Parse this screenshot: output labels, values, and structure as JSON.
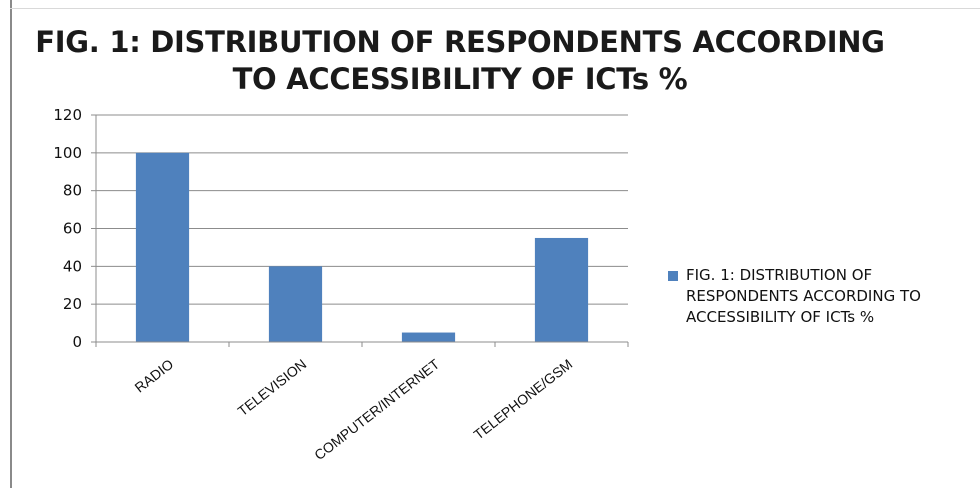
{
  "chart_data": {
    "type": "bar",
    "title": "FIG. 1: DISTRIBUTION OF RESPONDENTS ACCORDING TO ACCESSIBILITY OF ICTs %",
    "categories": [
      "RADIO",
      "TELEVISION",
      "COMPUTER/INTERNET",
      "TELEPHONE/GSM"
    ],
    "series": [
      {
        "name": "FIG. 1: DISTRIBUTION OF RESPONDENTS ACCORDING TO ACCESSIBILITY OF ICTs %",
        "values": [
          100,
          40,
          5,
          55
        ],
        "color": "#4f81bd"
      }
    ],
    "ylim": [
      0,
      120
    ],
    "yticks": [
      0,
      20,
      40,
      60,
      80,
      100,
      120
    ],
    "xlabel": "",
    "ylabel": "",
    "grid": true,
    "legend_position": "right"
  }
}
